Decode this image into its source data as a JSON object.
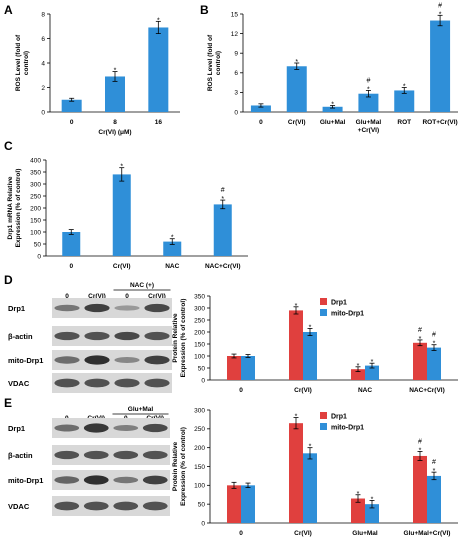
{
  "colors": {
    "blue": "#2f8fd8",
    "red": "#e0403e",
    "axis": "#000000",
    "blot_bg": "#d8d8d8",
    "band": "#262626"
  },
  "panels": {
    "A": {
      "label": "A"
    },
    "B": {
      "label": "B"
    },
    "C": {
      "label": "C"
    },
    "D": {
      "label": "D",
      "blot": {
        "lanes": [
          "0",
          "Cr(VI)",
          "0",
          "Cr(VI)"
        ],
        "group_label": "NAC (+)",
        "rows": [
          "Drp1",
          "β-actin",
          "mito-Drp1",
          "VDAC"
        ]
      }
    },
    "E": {
      "label": "E",
      "blot": {
        "lanes": [
          "0",
          "Cr(VI)",
          "0",
          "Cr(VI)"
        ],
        "group_label": "Glu+Mal",
        "rows": [
          "Drp1",
          "β-actin",
          "mito-Drp1",
          "VDAC"
        ]
      }
    }
  },
  "chart_data": [
    {
      "panel": "A",
      "type": "bar",
      "ylabel": [
        "ROS Level (fold of",
        "control)"
      ],
      "xlabel": "Cr(VI) (μM)",
      "categories": [
        "0",
        "8",
        "16"
      ],
      "yticks": [
        "0",
        "2",
        "4",
        "6",
        "8"
      ],
      "ylim": [
        0,
        8
      ],
      "series": [
        {
          "values": [
            1.0,
            2.9,
            6.9
          ],
          "errors": [
            0.12,
            0.4,
            0.5
          ],
          "marks": [
            "",
            "*",
            "*"
          ]
        }
      ]
    },
    {
      "panel": "B",
      "type": "bar",
      "ylabel": [
        "ROS Level (fold of",
        "control)"
      ],
      "categories": [
        "0",
        "Cr(VI)",
        "Glu+Mal",
        "Glu+Mal\n+Cr(VI)",
        "ROT",
        "ROT+Cr(VI)"
      ],
      "yticks": [
        "0",
        "3",
        "6",
        "9",
        "12",
        "15"
      ],
      "ylim": [
        0,
        15
      ],
      "series": [
        {
          "values": [
            1.0,
            7.0,
            0.8,
            2.8,
            3.3,
            14.0
          ],
          "errors": [
            0.25,
            0.5,
            0.2,
            0.5,
            0.45,
            0.8
          ],
          "marks": [
            "",
            "*",
            "*",
            "#\n*",
            "*",
            "#\n*"
          ]
        }
      ]
    },
    {
      "panel": "C",
      "type": "bar",
      "ylabel": [
        "Drp1 mRNA Relative",
        "Expression (% of  control)"
      ],
      "categories": [
        "0",
        "Cr(VI)",
        "NAC",
        "NAC+Cr(VI)"
      ],
      "yticks": [
        "0",
        "50",
        "100",
        "150",
        "200",
        "250",
        "300",
        "350",
        "400"
      ],
      "ylim": [
        0,
        400
      ],
      "series": [
        {
          "values": [
            100,
            340,
            60,
            215
          ],
          "errors": [
            10,
            28,
            12,
            18
          ],
          "marks": [
            "",
            "*",
            "*",
            "#\n*"
          ]
        }
      ]
    },
    {
      "panel": "D",
      "type": "bar",
      "ylabel": [
        "Protein Relative",
        "Expression (% of  control)"
      ],
      "categories": [
        "0",
        "Cr(VI)",
        "NAC",
        "NAC+Cr(VI)"
      ],
      "yticks": [
        "0",
        "50",
        "100",
        "150",
        "200",
        "250",
        "300",
        "350"
      ],
      "ylim": [
        0,
        350
      ],
      "legend": "top-right",
      "series": [
        {
          "name": "Drp1",
          "color": "red",
          "values": [
            100,
            290,
            45,
            155
          ],
          "errors": [
            8,
            15,
            10,
            12
          ],
          "marks": [
            "",
            "*",
            "*",
            "#\n*"
          ]
        },
        {
          "name": "mito-Drp1",
          "color": "blue",
          "values": [
            100,
            200,
            60,
            135
          ],
          "errors": [
            6,
            15,
            10,
            12
          ],
          "marks": [
            "",
            "*",
            "*",
            "#\n*"
          ]
        }
      ]
    },
    {
      "panel": "E",
      "type": "bar",
      "ylabel": [
        "Protein Relative",
        "Expression (% of  control)"
      ],
      "categories": [
        "0",
        "Cr(VI)",
        "Glu+Mal",
        "Glu+Mal+Cr(VI)"
      ],
      "yticks": [
        "0",
        "50",
        "100",
        "150",
        "200",
        "250",
        "300"
      ],
      "ylim": [
        0,
        300
      ],
      "legend": "top-right",
      "series": [
        {
          "name": "Drp1",
          "color": "red",
          "values": [
            100,
            265,
            65,
            178
          ],
          "errors": [
            8,
            15,
            10,
            12
          ],
          "marks": [
            "",
            "*",
            "*",
            "#\n*"
          ]
        },
        {
          "name": "mito-Drp1",
          "color": "blue",
          "values": [
            100,
            185,
            50,
            125
          ],
          "errors": [
            6,
            15,
            10,
            10
          ],
          "marks": [
            "",
            "*",
            "*",
            "#\n*"
          ]
        }
      ]
    }
  ]
}
